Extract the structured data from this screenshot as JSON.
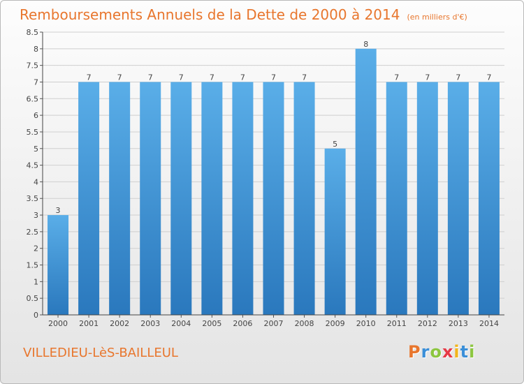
{
  "title": "Remboursements Annuels de la Dette de 2000 à 2014",
  "subtitle": "(en milliers d'€)",
  "location": "VILLEDIEU-LèS-BAILLEUL",
  "logo": {
    "letters": [
      "P",
      "r",
      "o",
      "x",
      "i",
      "t",
      "i"
    ],
    "colors": [
      "#e8762d",
      "#3b8fd8",
      "#8cc63f",
      "#e63946",
      "#f2b51c",
      "#3b8fd8",
      "#8cc63f"
    ]
  },
  "chart_data": {
    "type": "bar",
    "categories": [
      "2000",
      "2001",
      "2002",
      "2003",
      "2004",
      "2005",
      "2006",
      "2007",
      "2008",
      "2009",
      "2010",
      "2011",
      "2012",
      "2013",
      "2014"
    ],
    "values": [
      3,
      7,
      7,
      7,
      7,
      7,
      7,
      7,
      7,
      5,
      8,
      7,
      7,
      7,
      7
    ],
    "data_labels": [
      "3",
      "7",
      "7",
      "7",
      "7",
      "7",
      "7",
      "7",
      "7",
      "5",
      "8",
      "7",
      "7",
      "7",
      "7"
    ],
    "ylim": [
      0,
      8.5
    ],
    "yticks": [
      0,
      0.5,
      1,
      1.5,
      2,
      2.5,
      3,
      3.5,
      4,
      4.5,
      5,
      5.5,
      6,
      6.5,
      7,
      7.5,
      8,
      8.5
    ],
    "ytick_labels": [
      "0",
      "0.5",
      "1",
      "1.5",
      "2",
      "2.5",
      "3",
      "3.5",
      "4",
      "4.5",
      "5",
      "5.5",
      "6",
      "6.5",
      "7",
      "7.5",
      "8",
      "8.5"
    ],
    "grid": true,
    "bar_color_top": "#5aaee8",
    "bar_color_bottom": "#2a78bd"
  }
}
